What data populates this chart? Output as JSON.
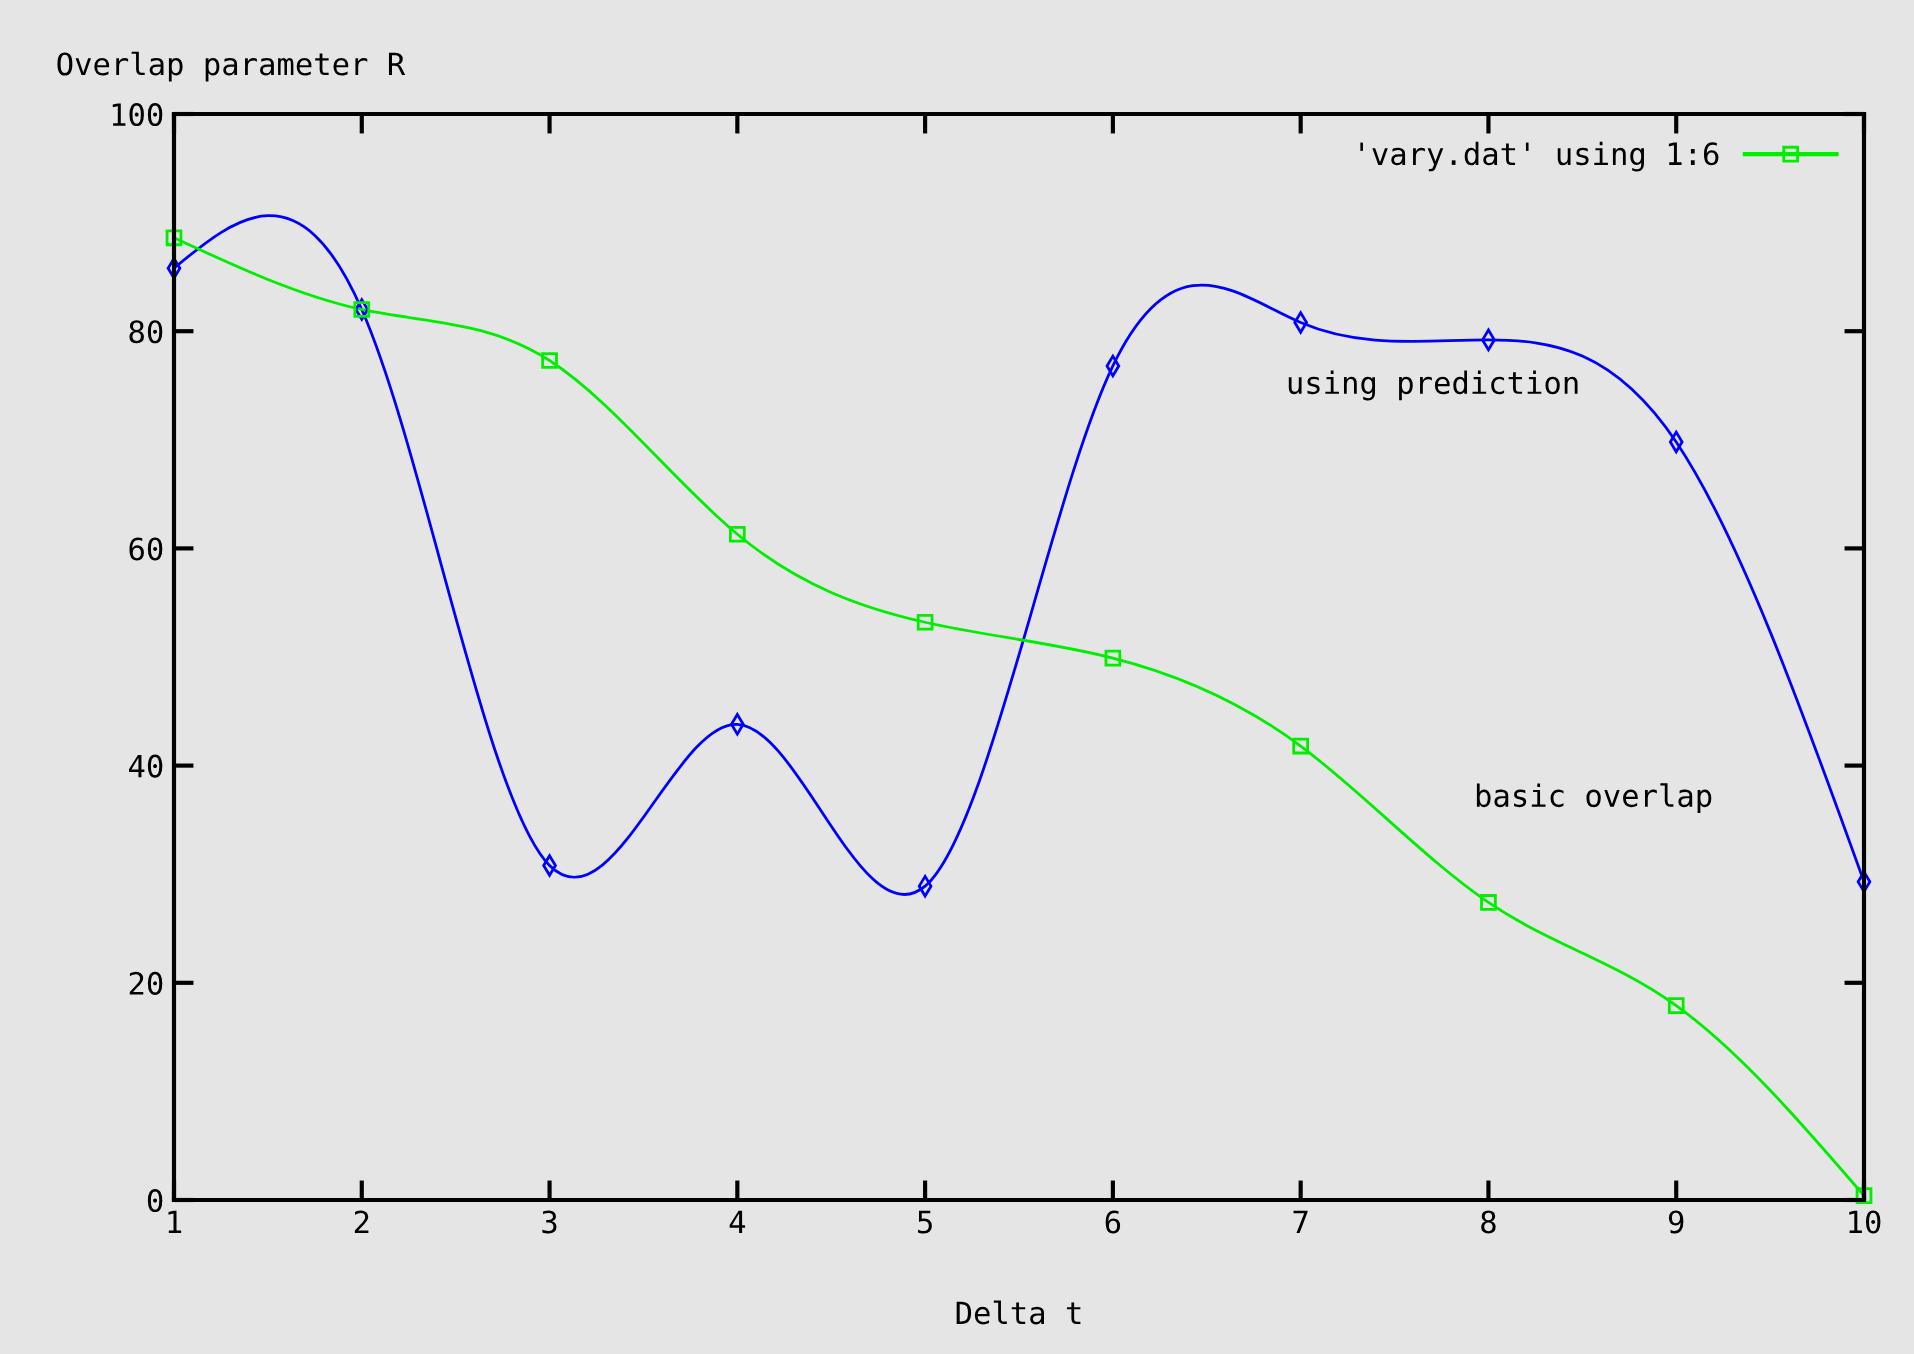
{
  "chart_data": {
    "type": "line",
    "xlabel": "Delta t",
    "ylabel": "Overlap parameter R",
    "x": [
      1,
      2,
      3,
      4,
      5,
      6,
      7,
      8,
      9,
      10
    ],
    "series": [
      {
        "color": "#0000ff",
        "marker": "diamond",
        "values": [
          85.8,
          82.0,
          30.8,
          43.8,
          28.9,
          76.8,
          80.8,
          79.2,
          69.8,
          29.3
        ]
      },
      {
        "name": "'vary.dat' using 1:6",
        "color": "#00ee00",
        "marker": "square",
        "values": [
          88.6,
          82.0,
          77.3,
          61.3,
          53.2,
          49.9,
          41.8,
          27.4,
          17.9,
          0.4
        ]
      }
    ],
    "annotations": [
      "using prediction",
      "basic overlap"
    ],
    "xlim": [
      1,
      10
    ],
    "xticks": [
      1,
      2,
      3,
      4,
      5,
      6,
      7,
      8,
      9,
      10
    ],
    "ylim": [
      0,
      100
    ],
    "yticks": [
      0,
      20,
      40,
      60,
      80,
      100
    ],
    "grid": false,
    "legend": "top right",
    "line_style": "solid"
  }
}
